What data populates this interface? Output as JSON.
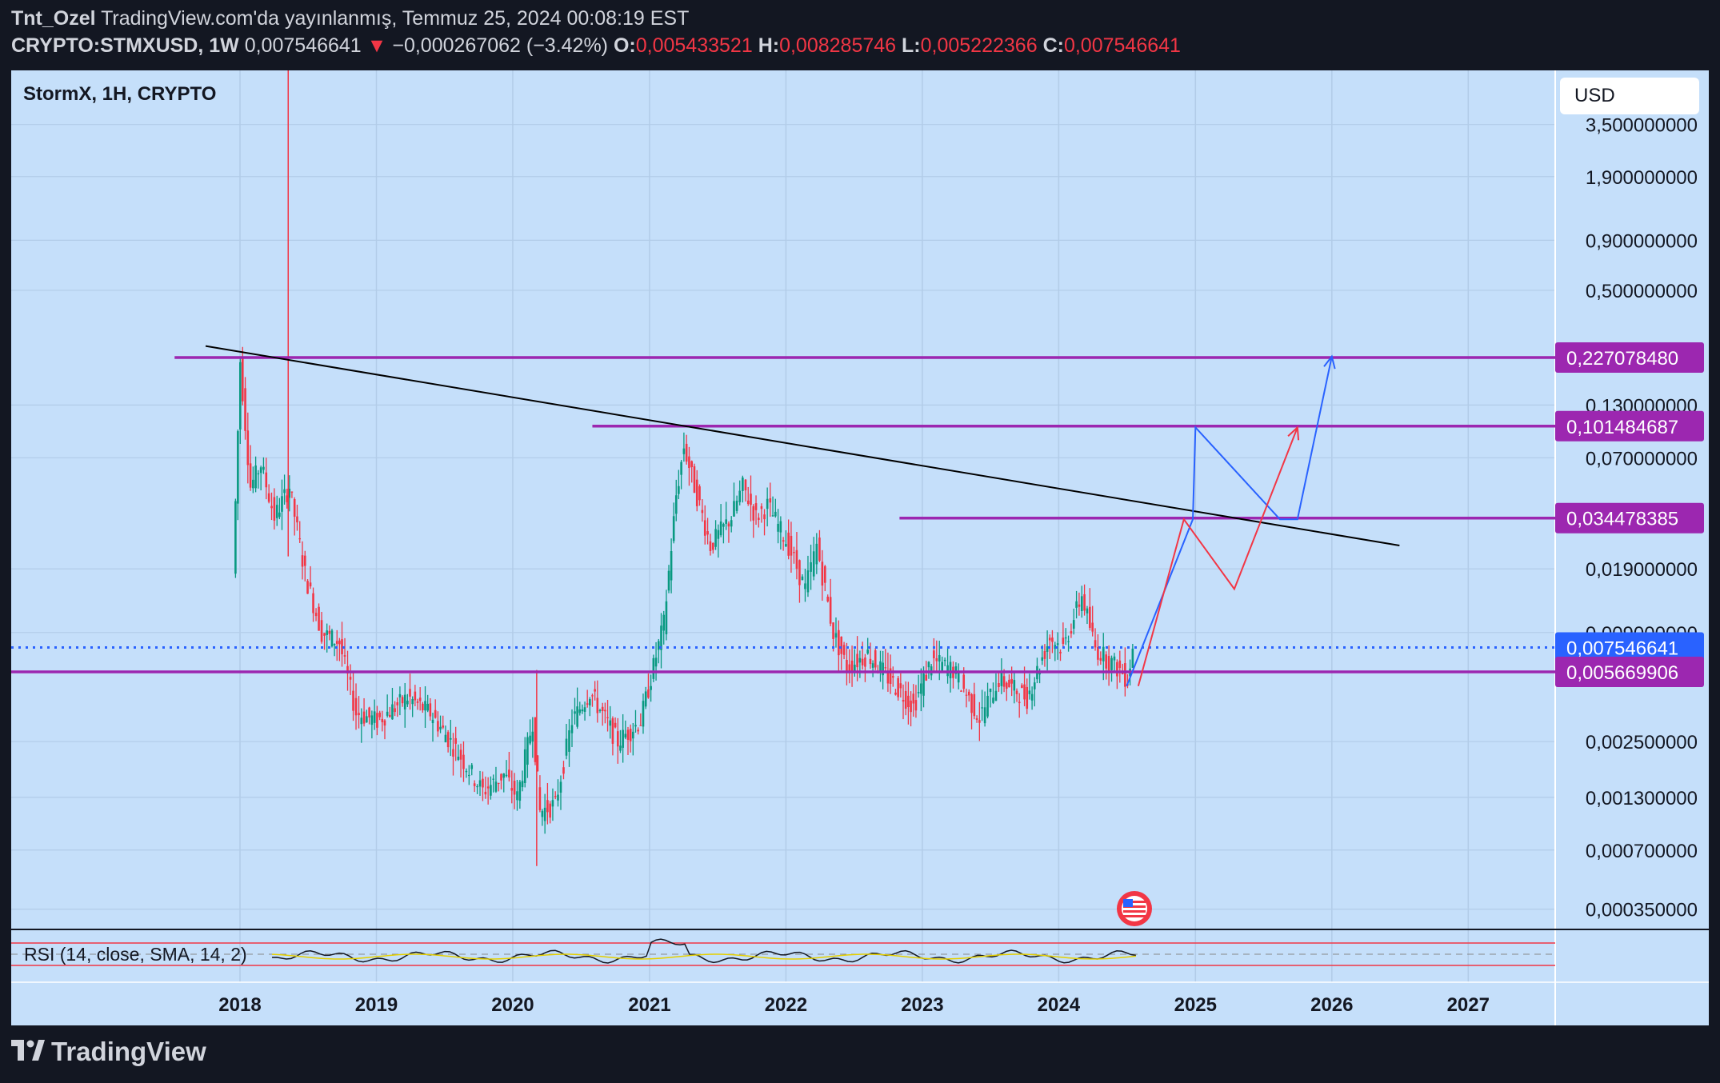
{
  "header": {
    "author": "Tnt_Ozel",
    "published": "TradingView.com'da yayınlanmış, Temmuz 25, 2024 00:08:19 EST",
    "symbol": "CRYPTO:STMXUSD, 1W",
    "last": "0,007546641",
    "change_arrow": "▼",
    "change": "−0,000267062 (−3.42%)",
    "o_label": "O:",
    "o": "0,005433521",
    "h_label": "H:",
    "h": "0,008285746",
    "l_label": "L:",
    "l": "0,005222366",
    "c_label": "C:",
    "c": "0,007546641"
  },
  "chart_legend": "StormX, 1H, CRYPTO",
  "currency_button": "USD",
  "rsi_label": "RSI (14, close, SMA, 14, 2)",
  "footer_brand": "TradingView",
  "colors": {
    "background": "#c5dffa",
    "frame": "#131722",
    "level_line": "#9c27b0",
    "trendline": "#000000",
    "up_candle": "#089981",
    "down_candle": "#f23645",
    "current_price": "#2962ff",
    "projection_blue": "#2962ff",
    "projection_red": "#f23645"
  },
  "chart_data": {
    "type": "candlestick",
    "scale": "log",
    "x_tick_labels": [
      "2018",
      "2019",
      "2020",
      "2021",
      "2022",
      "2023",
      "2024",
      "2025",
      "2026",
      "2027"
    ],
    "y_tick_labels": [
      "3,500000000",
      "1,900000000",
      "0,900000000",
      "0,500000000",
      "0,130000000",
      "0,070000000",
      "0,019000000",
      "0,009000000",
      "0,002500000",
      "0,001300000",
      "0,000700000",
      "0,000350000"
    ],
    "price_labels": [
      {
        "text": "0,227078480",
        "value": 0.22707848,
        "color": "#9c27b0"
      },
      {
        "text": "0,101484687",
        "value": 0.101484687,
        "color": "#9c27b0"
      },
      {
        "text": "0,034478385",
        "value": 0.034478385,
        "color": "#9c27b0"
      },
      {
        "text": "0,007546641",
        "value": 0.007546641,
        "color": "#2962ff"
      },
      {
        "text": "0,005669906",
        "value": 0.005669906,
        "color": "#9c27b0"
      }
    ],
    "horizontal_levels": [
      0.22707848,
      0.101484687,
      0.034478385,
      0.005669906
    ],
    "current_price": 0.007546641,
    "price_path": [
      [
        "2017-12-20",
        0.018
      ],
      [
        "2018-01-08",
        0.22
      ],
      [
        "2018-02-05",
        0.05
      ],
      [
        "2018-03-05",
        0.065
      ],
      [
        "2018-04-10",
        0.035
      ],
      [
        "2018-05-20",
        0.05
      ],
      [
        "2018-07-01",
        0.018
      ],
      [
        "2018-08-15",
        0.009
      ],
      [
        "2018-10-01",
        0.008
      ],
      [
        "2018-11-15",
        0.0035
      ],
      [
        "2019-01-10",
        0.0032
      ],
      [
        "2019-04-01",
        0.0042
      ],
      [
        "2019-06-01",
        0.0035
      ],
      [
        "2019-08-15",
        0.0022
      ],
      [
        "2019-10-20",
        0.0014
      ],
      [
        "2019-12-15",
        0.0017
      ],
      [
        "2020-01-20",
        0.0013
      ],
      [
        "2020-03-01",
        0.0032
      ],
      [
        "2020-03-20",
        0.0011
      ],
      [
        "2020-05-01",
        0.0012
      ],
      [
        "2020-06-15",
        0.0032
      ],
      [
        "2020-08-01",
        0.0045
      ],
      [
        "2020-10-15",
        0.0025
      ],
      [
        "2020-12-15",
        0.0032
      ],
      [
        "2021-02-15",
        0.01
      ],
      [
        "2021-03-20",
        0.045
      ],
      [
        "2021-04-10",
        0.08
      ],
      [
        "2021-05-15",
        0.045
      ],
      [
        "2021-06-20",
        0.025
      ],
      [
        "2021-08-15",
        0.035
      ],
      [
        "2021-09-15",
        0.05
      ],
      [
        "2021-10-20",
        0.035
      ],
      [
        "2021-11-20",
        0.04
      ],
      [
        "2022-01-15",
        0.025
      ],
      [
        "2022-03-01",
        0.015
      ],
      [
        "2022-04-01",
        0.025
      ],
      [
        "2022-05-15",
        0.009
      ],
      [
        "2022-06-20",
        0.006
      ],
      [
        "2022-08-15",
        0.007
      ],
      [
        "2022-10-01",
        0.0055
      ],
      [
        "2022-12-15",
        0.0038
      ],
      [
        "2023-02-01",
        0.0065
      ],
      [
        "2023-04-01",
        0.0058
      ],
      [
        "2023-06-10",
        0.0033
      ],
      [
        "2023-08-01",
        0.0052
      ],
      [
        "2023-10-15",
        0.0042
      ],
      [
        "2023-12-15",
        0.0085
      ],
      [
        "2024-01-20",
        0.0075
      ],
      [
        "2024-03-10",
        0.014
      ],
      [
        "2024-04-15",
        0.0075
      ],
      [
        "2024-06-20",
        0.0058
      ],
      [
        "2024-07-10",
        0.0052
      ],
      [
        "2024-07-24",
        0.0075
      ]
    ],
    "trendline": [
      [
        "2017-10-01",
        0.26
      ],
      [
        "2026-07-01",
        0.025
      ]
    ],
    "projection_blue": [
      [
        "2024-07-01",
        0.0048
      ],
      [
        "2024-12-25",
        0.034
      ],
      [
        "2025-01-01",
        0.1
      ],
      [
        "2025-08-15",
        0.034
      ],
      [
        "2025-10-01",
        0.034
      ],
      [
        "2026-01-01",
        0.23
      ]
    ],
    "projection_red": [
      [
        "2024-08-01",
        0.0048
      ],
      [
        "2024-12-01",
        0.034
      ],
      [
        "2025-04-15",
        0.015
      ],
      [
        "2025-10-01",
        0.1
      ]
    ],
    "rsi": {
      "upper_band": 70,
      "lower_band": 30
    }
  }
}
